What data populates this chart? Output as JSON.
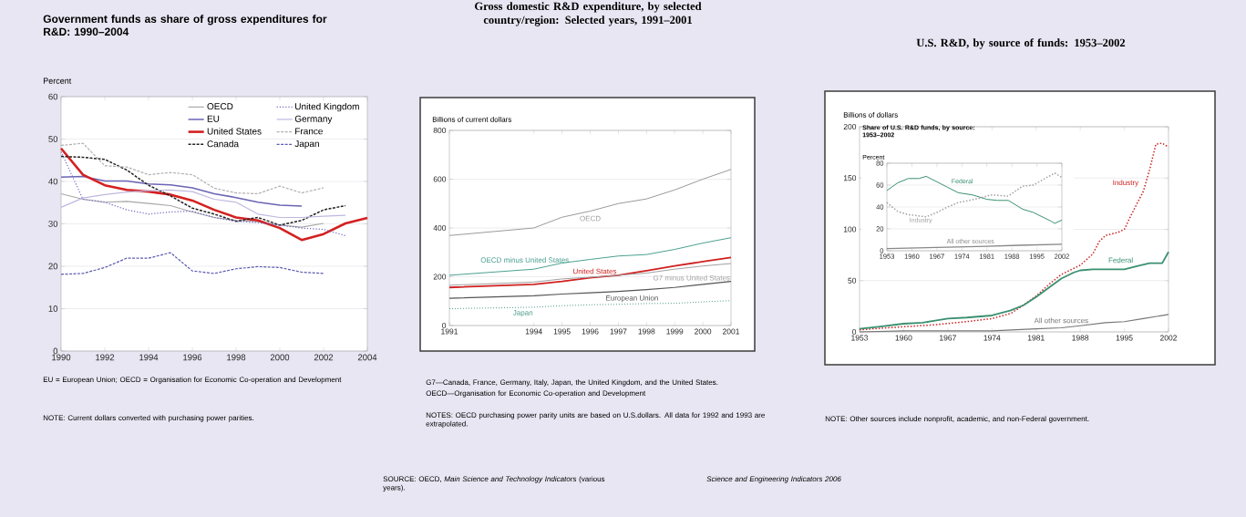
{
  "chart_data": [
    {
      "type": "line",
      "title": "Government funds as share of gross expenditures for R&D: 1990–2004",
      "ylabel": "Percent",
      "xlim": [
        1990,
        2004
      ],
      "ylim": [
        0,
        60
      ],
      "xticks": [
        1990,
        1992,
        1994,
        1996,
        1998,
        2000,
        2002,
        2004
      ],
      "yticks": [
        0,
        10,
        20,
        30,
        40,
        50,
        60
      ],
      "grid": "y",
      "legend": "top right",
      "series": [
        {
          "name": "OECD",
          "color": "#a8a8a8",
          "line_style": "solid",
          "x": [
            1990,
            1991,
            1992,
            1993,
            1994,
            1995,
            1996,
            1997,
            1998,
            1999,
            2000,
            2001,
            2002
          ],
          "values": [
            37.1,
            35.8,
            35.1,
            35.3,
            34.8,
            34.3,
            32.8,
            31.5,
            30.8,
            30.5,
            29.7,
            29.2,
            30.1
          ]
        },
        {
          "name": "EU",
          "color": "#6a64b4",
          "line_style": "solid",
          "x": [
            1990,
            1991,
            1992,
            1993,
            1994,
            1995,
            1996,
            1997,
            1998,
            1999,
            2000,
            2001
          ],
          "values": [
            41.0,
            41.2,
            40.1,
            40.1,
            39.4,
            39.2,
            38.5,
            37.1,
            36.2,
            35.1,
            34.4,
            34.2
          ]
        },
        {
          "name": "United States",
          "color": "#d42020",
          "line_style": "solid",
          "x": [
            1990,
            1991,
            1992,
            1993,
            1994,
            1995,
            1996,
            1997,
            1998,
            1999,
            2000,
            2001,
            2002,
            2003,
            2004
          ],
          "values": [
            47.8,
            41.6,
            39.1,
            38.0,
            37.6,
            36.9,
            35.5,
            33.3,
            31.5,
            30.8,
            29.0,
            26.2,
            27.6,
            30.1,
            31.4
          ]
        },
        {
          "name": "Canada",
          "color": "#222222",
          "line_style": "dashed",
          "x": [
            1990,
            1991,
            1992,
            1993,
            1994,
            1995,
            1996,
            1997,
            1998,
            1999,
            2000,
            2001,
            2002,
            2003
          ],
          "values": [
            45.9,
            45.7,
            45.2,
            42.7,
            39.1,
            36.6,
            33.7,
            32.3,
            30.6,
            31.5,
            29.7,
            30.8,
            33.3,
            34.3
          ]
        },
        {
          "name": "United Kingdom",
          "color": "#6a64c0",
          "line_style": "dotted",
          "x": [
            1990,
            1991,
            1992,
            1993,
            1994,
            1995,
            1996,
            1997,
            1998,
            1999,
            2000,
            2001,
            2002,
            2003
          ],
          "values": [
            47.0,
            35.8,
            35.1,
            33.3,
            32.3,
            32.8,
            33.0,
            31.5,
            30.6,
            30.3,
            29.7,
            29.0,
            28.7,
            27.2
          ]
        },
        {
          "name": "Germany",
          "color": "#c0b8e0",
          "line_style": "solid",
          "x": [
            1990,
            1991,
            1992,
            1993,
            1994,
            1995,
            1996,
            1997,
            1998,
            1999,
            2000,
            2001,
            2002,
            2003
          ],
          "values": [
            33.9,
            36.1,
            36.9,
            37.5,
            37.8,
            38.0,
            37.6,
            35.8,
            35.1,
            32.3,
            31.5,
            31.5,
            31.8,
            32.0
          ]
        },
        {
          "name": "France",
          "color": "#b0b0b0",
          "line_style": "dashed",
          "x": [
            1990,
            1991,
            1992,
            1993,
            1994,
            1995,
            1996,
            1997,
            1998,
            1999,
            2000,
            2001,
            2002
          ],
          "values": [
            48.5,
            49.0,
            43.7,
            43.4,
            41.6,
            42.1,
            41.6,
            38.4,
            37.3,
            37.1,
            38.9,
            37.3,
            38.5
          ]
        },
        {
          "name": "Japan",
          "color": "#5a5ab0",
          "line_style": "dashed",
          "x": [
            1990,
            1991,
            1992,
            1993,
            1994,
            1995,
            1996,
            1997,
            1998,
            1999,
            2000,
            2001,
            2002
          ],
          "values": [
            18.1,
            18.3,
            19.7,
            21.9,
            21.9,
            23.2,
            18.9,
            18.3,
            19.4,
            19.9,
            19.7,
            18.6,
            18.3
          ]
        }
      ],
      "annotations": [
        "EU = European Union; OECD = Organisation for Economic Co-operation and Development",
        "NOTE: Current dollars converted with purchasing power parities."
      ]
    },
    {
      "type": "line",
      "title": "Gross domestic R&D expenditure, by selected country/region: Selected years, 1991–2001",
      "ylabel": "Billions of current dollars",
      "xlim": [
        1991,
        2001
      ],
      "ylim": [
        0,
        800
      ],
      "xticks": [
        1991,
        1994,
        1995,
        1996,
        1997,
        1998,
        1999,
        2000,
        2001
      ],
      "yticks": [
        0,
        200,
        400,
        600,
        800
      ],
      "grid": "y",
      "legend": false,
      "x": [
        1991,
        1994,
        1995,
        1996,
        1997,
        1998,
        1999,
        2000,
        2001
      ],
      "series": [
        {
          "name": "OECD",
          "color": "#9a9a9a",
          "line_style": "solid",
          "values": [
            369,
            400,
            444,
            469,
            500,
            519,
            556,
            600,
            640
          ]
        },
        {
          "name": "OECD minus United States",
          "color": "#4aa090",
          "line_style": "solid",
          "values": [
            206,
            231,
            256,
            271,
            285,
            291,
            312,
            338,
            360
          ]
        },
        {
          "name": "United States",
          "color": "#d02020",
          "line_style": "solid",
          "values": [
            156,
            169,
            181,
            196,
            206,
            225,
            244,
            262,
            279
          ]
        },
        {
          "name": "G7 minus United States",
          "color": "#a0a0a0",
          "line_style": "solid",
          "values": [
            165,
            178,
            191,
            198,
            206,
            215,
            231,
            244,
            254
          ]
        },
        {
          "name": "European Union",
          "color": "#555555",
          "line_style": "solid",
          "values": [
            112,
            122,
            129,
            134,
            140,
            147,
            156,
            169,
            181
          ]
        },
        {
          "name": "Japan",
          "color": "#4a9a8a",
          "line_style": "dotted",
          "values": [
            69,
            75,
            81,
            85,
            87,
            90,
            91,
            97,
            102
          ]
        }
      ],
      "annotations": [
        "G7—Canada, France, Germany, Italy, Japan, the United Kingdom, and the United States.",
        "OECD—Organisation for Economic Co-operation and Development",
        "NOTES: OECD purchasing power parity units are based on U.S.dollars. All data for 1992 and 1993 are extrapolated.",
        "SOURCE: OECD, *Main Science and Technology Indicators* (various years).",
        "Science and Engineering Indicators 2006"
      ]
    },
    {
      "type": "line",
      "title": "U.S. R&D, by source of funds: 1953–2002",
      "ylabel": "Billions of dollars",
      "xlim": [
        1953,
        2002
      ],
      "ylim": [
        0,
        200
      ],
      "xticks": [
        1953,
        1960,
        1967,
        1974,
        1981,
        1988,
        1995,
        2002
      ],
      "yticks": [
        0,
        50,
        100,
        150,
        200
      ],
      "grid": "y",
      "legend": false,
      "series": [
        {
          "name": "Industry",
          "color": "#cc2020",
          "line_style": "dotted",
          "x": [
            1953,
            1955,
            1960,
            1965,
            1970,
            1974,
            1977,
            1979,
            1981,
            1983,
            1985,
            1987,
            1988,
            1990,
            1991,
            1992,
            1994,
            1995,
            1996,
            1997,
            1998,
            1999,
            2000,
            2001,
            2002
          ],
          "values": [
            2,
            3,
            5,
            7,
            10,
            13,
            18,
            26,
            35,
            46,
            56,
            62,
            65,
            76,
            88,
            94,
            97,
            100,
            113,
            125,
            137,
            158,
            183,
            184,
            180
          ]
        },
        {
          "name": "Federal",
          "color": "#3a9070",
          "line_style": "solid",
          "x": [
            1953,
            1956,
            1960,
            1963,
            1965,
            1967,
            1970,
            1974,
            1977,
            1979,
            1981,
            1983,
            1985,
            1987,
            1988,
            1990,
            1992,
            1995,
            1997,
            1999,
            2001,
            2002
          ],
          "values": [
            3,
            5,
            8,
            9,
            11,
            13,
            14,
            16,
            21,
            26,
            34,
            43,
            52,
            58,
            60,
            61,
            61,
            61,
            64,
            67,
            67,
            78
          ]
        },
        {
          "name": "All other sources",
          "color": "#777777",
          "line_style": "solid",
          "x": [
            1953,
            1960,
            1967,
            1974,
            1981,
            1985,
            1988,
            1992,
            1995,
            1998,
            2000,
            2002
          ],
          "values": [
            0,
            1,
            1,
            1,
            3,
            4,
            6,
            9,
            10,
            13,
            15,
            17
          ]
        }
      ],
      "annotations": [
        "NOTE: Other sources include nonprofit, academic, and non-Federal government."
      ]
    },
    {
      "type": "line",
      "title": "Share of U.S. R&D funds, by source: 1953–2002",
      "ylabel": "Percent",
      "xlim": [
        1953,
        2002
      ],
      "ylim": [
        0,
        80
      ],
      "xticks": [
        1953,
        1960,
        1967,
        1974,
        1981,
        1988,
        1995,
        2002
      ],
      "yticks": [
        0,
        20,
        40,
        60,
        80
      ],
      "grid": "y",
      "legend": false,
      "series": [
        {
          "name": "Federal",
          "color": "#3a9070",
          "line_style": "solid",
          "x": [
            1953,
            1956,
            1959,
            1962,
            1964,
            1967,
            1970,
            1973,
            1977,
            1981,
            1984,
            1987,
            1991,
            1994,
            1999,
            2000,
            2002
          ],
          "values": [
            55,
            62,
            66,
            66,
            68,
            63,
            58,
            53,
            51,
            47,
            46,
            46,
            38,
            35,
            27,
            25,
            28
          ]
        },
        {
          "name": "Industry",
          "color": "#a0a0a0",
          "line_style": "dotted",
          "x": [
            1953,
            1956,
            1959,
            1964,
            1967,
            1970,
            1973,
            1979,
            1982,
            1987,
            1991,
            1994,
            2000,
            2002
          ],
          "values": [
            44,
            36,
            33,
            31,
            35,
            40,
            44,
            48,
            51,
            50,
            59,
            60,
            71,
            67
          ]
        },
        {
          "name": "All other sources",
          "color": "#888888",
          "line_style": "solid",
          "x": [
            1953,
            1967,
            1981,
            1990,
            2002
          ],
          "values": [
            2,
            3,
            4,
            5,
            6
          ]
        }
      ]
    }
  ]
}
